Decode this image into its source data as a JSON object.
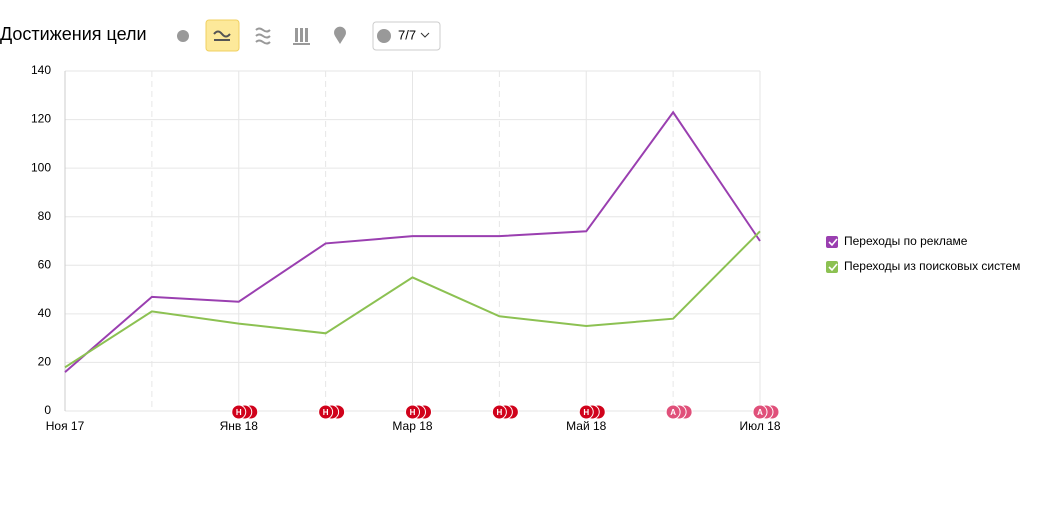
{
  "toolbar": {
    "counter": "7/7"
  },
  "chart_data": {
    "type": "line",
    "title": "Достижения цели",
    "categories": [
      "Ноя 17",
      null,
      "Янв 18",
      null,
      "Мар 18",
      null,
      "Май 18",
      null,
      "Июл 18"
    ],
    "series": [
      {
        "name": "Переходы по рекламе",
        "color": "#9a3fb0",
        "values": [
          16,
          47,
          45,
          69,
          72,
          72,
          74,
          123,
          70
        ]
      },
      {
        "name": "Переходы из поисковых систем",
        "color": "#8cc152",
        "values": [
          18,
          41,
          36,
          32,
          55,
          39,
          35,
          38,
          74
        ]
      }
    ],
    "annotations": [
      null,
      null,
      "Н",
      "Н",
      "Н",
      "Н",
      "Н",
      "А",
      "А"
    ],
    "ylim": [
      0,
      140
    ],
    "yticks": [
      0,
      20,
      40,
      60,
      80,
      100,
      120,
      140
    ],
    "grid": true,
    "legend": "right"
  }
}
